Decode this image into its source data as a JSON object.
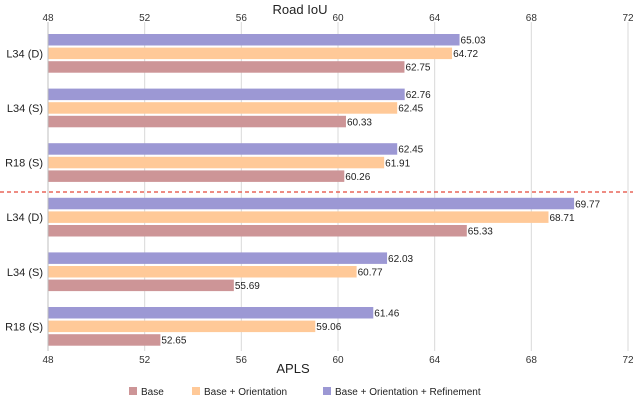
{
  "chart_data": {
    "type": "bar",
    "orientation": "horizontal",
    "top_axis": {
      "label": "Road IoU",
      "range": [
        48,
        72
      ],
      "ticks": [
        "48",
        "52",
        "56",
        "60",
        "64",
        "68",
        "72"
      ]
    },
    "bottom_axis": {
      "label": "APLS",
      "range": [
        48,
        72
      ],
      "ticks": [
        "48",
        "52",
        "56",
        "60",
        "64",
        "68",
        "72"
      ]
    },
    "grid": "vertical",
    "separator": "dashed red line between Road IoU and APLS groups",
    "legend_position": "bottom",
    "series_names": [
      "Base",
      "Base + Orientation",
      "Base + Orientation + Refinement"
    ],
    "series_colors": [
      "#cd9597",
      "#ffc998",
      "#9c98d4"
    ],
    "groups": [
      {
        "category": "L34 (D)",
        "metric": "Road IoU",
        "values": [
          62.75,
          64.72,
          65.03
        ]
      },
      {
        "category": "L34 (S)",
        "metric": "Road IoU",
        "values": [
          60.33,
          62.45,
          62.76
        ]
      },
      {
        "category": "R18 (S)",
        "metric": "Road IoU",
        "values": [
          60.26,
          61.91,
          62.45
        ]
      },
      {
        "category": "L34 (D)",
        "metric": "APLS",
        "values": [
          65.33,
          68.71,
          69.77
        ]
      },
      {
        "category": "L34 (S)",
        "metric": "APLS",
        "values": [
          55.69,
          60.77,
          62.03
        ]
      },
      {
        "category": "R18 (S)",
        "metric": "APLS",
        "values": [
          52.65,
          59.06,
          61.46
        ]
      }
    ]
  }
}
